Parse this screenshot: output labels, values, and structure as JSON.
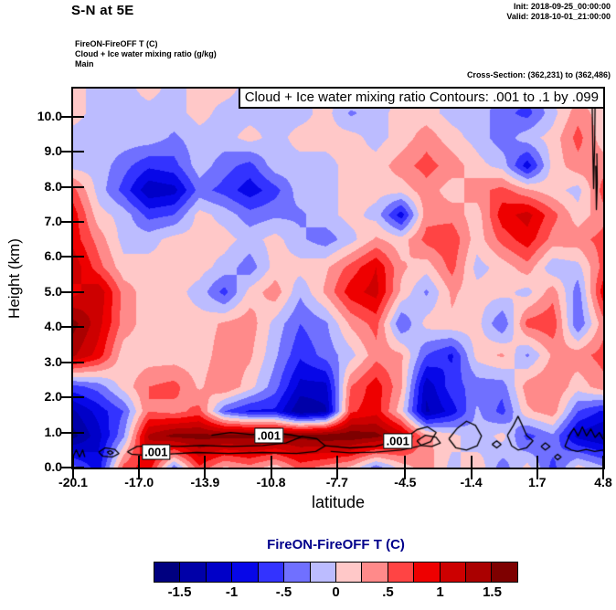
{
  "header": {
    "title": "S-N at 5E",
    "init_label": "Init: 2018-09-25_00:00:00",
    "valid_label": "Valid: 2018-10-01_21:00:00",
    "legend_lines": [
      "FireON-FireOFF T   (C)",
      "Cloud + Ice water mixing ratio   (g/kg)",
      "Main"
    ],
    "cross_section": "Cross-Section: (362,231) to (362,486)"
  },
  "chart_data": {
    "type": "heatmap",
    "title": "Cloud + Ice water mixing ratio Contours: .001 to .1 by .099",
    "xlabel": "latitude",
    "ylabel": "Height (km)",
    "field_name": "FireON-FireOFF T (C)",
    "xlim": [
      -20.1,
      4.8
    ],
    "ylim": [
      0,
      10.8
    ],
    "x_ticks": [
      "-20.1",
      "-17.0",
      "-13.9",
      "-10.8",
      "-7.7",
      "-4.5",
      "-1.4",
      "1.7",
      "4.8"
    ],
    "y_ticks": [
      "0.0",
      "1.0",
      "2.0",
      "3.0",
      "4.0",
      "5.0",
      "6.0",
      "7.0",
      "8.0",
      "9.0",
      "10.0"
    ],
    "grid": {
      "comment": "Approximate FireON-FireOFF temperature difference field (C), rows top-to-bottom",
      "lats": [
        -20.1,
        -18.91,
        -17.73,
        -16.54,
        -15.36,
        -14.17,
        -12.99,
        -11.8,
        -10.61,
        -9.43,
        -8.24,
        -7.06,
        -5.87,
        -4.69,
        -3.5,
        -2.31,
        -1.13,
        0.06,
        1.24,
        2.43,
        3.61,
        4.8
      ],
      "heights": [
        10.8,
        10.1,
        9.4,
        8.6,
        7.9,
        7.2,
        6.5,
        5.7,
        5.0,
        4.1,
        3.2,
        2.3,
        1.6,
        0.9,
        0.0
      ],
      "values": [
        [
          0.1,
          -0.1,
          -0.1,
          0.1,
          -0.1,
          0.1,
          0.1,
          -0.1,
          -0.1,
          -0.1,
          0.1,
          0.1,
          -0.3,
          0.1,
          0.1,
          -0.1,
          -0.3,
          -0.1,
          -0.4,
          0.1,
          0.1,
          0.1
        ],
        [
          0.1,
          -0.1,
          -0.1,
          -0.1,
          -0.1,
          0.1,
          -0.1,
          -0.1,
          -0.1,
          -0.1,
          0.1,
          -0.3,
          -0.1,
          0.1,
          0.1,
          -0.1,
          -0.1,
          -0.4,
          -0.6,
          -0.1,
          0.4,
          0.1
        ],
        [
          -0.1,
          -0.1,
          -0.1,
          -0.1,
          -0.3,
          -0.1,
          -0.1,
          0.1,
          -0.1,
          0.1,
          0.1,
          0.1,
          -0.1,
          0.1,
          0.4,
          0.1,
          -0.1,
          -0.4,
          -0.1,
          0.1,
          0.6,
          0.1
        ],
        [
          -0.1,
          -0.1,
          -0.4,
          -0.7,
          -0.6,
          -0.1,
          -0.4,
          -0.6,
          -0.1,
          -0.1,
          -0.1,
          0.1,
          0.1,
          0.4,
          0.6,
          0.4,
          0.1,
          -0.1,
          -0.9,
          0.1,
          0.4,
          0.4
        ],
        [
          0.6,
          -0.1,
          -0.6,
          -1.2,
          -1.1,
          -0.4,
          -0.6,
          -0.9,
          -0.6,
          -0.1,
          -0.1,
          0.1,
          0.1,
          0.1,
          0.4,
          0.1,
          0.4,
          0.6,
          0.3,
          0.1,
          -0.1,
          0.6
        ],
        [
          0.9,
          0.1,
          -0.1,
          -0.6,
          -0.5,
          0.1,
          -0.1,
          -0.4,
          -0.3,
          -0.3,
          -0.1,
          0.1,
          -0.1,
          -0.9,
          0.4,
          0.4,
          0.1,
          0.9,
          1.1,
          0.6,
          0.1,
          0.4
        ],
        [
          0.9,
          0.4,
          -0.1,
          -0.1,
          0.1,
          0.1,
          0.1,
          -0.1,
          0.1,
          -0.2,
          -0.4,
          -0.1,
          0.3,
          0.1,
          0.6,
          0.7,
          0.1,
          0.6,
          0.9,
          0.4,
          0.4,
          0.6
        ],
        [
          1.2,
          0.6,
          0.1,
          0.1,
          0.1,
          0.1,
          -0.1,
          -0.4,
          0.1,
          0.1,
          0.2,
          0.6,
          1.0,
          0.3,
          0.1,
          0.6,
          -0.1,
          0.1,
          0.4,
          -0.2,
          -0.1,
          0.6
        ],
        [
          0.9,
          1.2,
          0.4,
          0.1,
          0.1,
          -0.1,
          -0.6,
          0.1,
          0.4,
          -0.2,
          0.3,
          0.9,
          1.1,
          0.2,
          -0.3,
          0.3,
          0.1,
          0.1,
          -0.1,
          0.4,
          -0.4,
          0.9
        ],
        [
          1.6,
          1.1,
          0.4,
          0.1,
          0.1,
          0.1,
          0.3,
          0.4,
          -0.1,
          -0.5,
          -0.3,
          0.3,
          0.6,
          -0.5,
          0.1,
          0.2,
          0.1,
          -0.5,
          0.6,
          0.7,
          -0.5,
          0.4
        ],
        [
          1.3,
          0.9,
          0.1,
          0.1,
          0.1,
          0.1,
          0.4,
          0.3,
          -0.2,
          -0.7,
          -0.4,
          -0.1,
          0.4,
          0.3,
          -0.5,
          -0.8,
          0.1,
          0.3,
          -0.3,
          0.3,
          0.4,
          0.6
        ],
        [
          -0.6,
          -0.4,
          0.1,
          0.5,
          0.6,
          0.2,
          0.5,
          0.1,
          -0.4,
          -1.1,
          -1.1,
          0.5,
          0.9,
          0.3,
          -1.2,
          -0.6,
          -0.4,
          -0.4,
          0.4,
          0.5,
          0.1,
          0.4
        ],
        [
          -1.3,
          -0.9,
          -0.5,
          0.5,
          0.4,
          0.6,
          -0.5,
          -0.8,
          -0.8,
          -1.5,
          -1.3,
          0.7,
          0.9,
          0.1,
          -1.3,
          -0.9,
          -0.2,
          -0.6,
          0.2,
          0.4,
          -0.5,
          -0.8
        ],
        [
          -1.6,
          -1.1,
          -0.3,
          1.3,
          1.6,
          1.6,
          1.6,
          1.6,
          1.6,
          1.6,
          1.7,
          1.7,
          1.6,
          1.2,
          0.3,
          0.1,
          -0.2,
          0.1,
          -0.6,
          -0.3,
          -1.1,
          -1.3
        ],
        [
          -0.4,
          -0.9,
          0.6,
          0.9,
          -0.4,
          0.7,
          0.2,
          0.4,
          0.1,
          0.6,
          0.4,
          0.2,
          -0.4,
          0.1,
          0.4,
          -0.1,
          0.2,
          -0.4,
          0.1,
          -0.6,
          0.1,
          -0.2
        ]
      ]
    },
    "contour_label": ".001",
    "contour_labels_positions": [
      {
        "lat": -16.2,
        "km": 0.45
      },
      {
        "lat": -10.9,
        "km": 0.9
      },
      {
        "lat": -4.85,
        "km": 0.75
      }
    ],
    "contours": [
      [
        [
          4.28,
          10.45
        ],
        [
          4.31,
          9.2
        ],
        [
          4.35,
          7.95
        ],
        [
          4.4,
          9.3
        ],
        [
          4.42,
          10.45
        ]
      ],
      [
        [
          4.45,
          8.6
        ],
        [
          4.48,
          7.35
        ],
        [
          4.52,
          8.1
        ],
        [
          4.5,
          8.95
        ]
      ],
      [
        [
          -20.1,
          0.32
        ],
        [
          -19.95,
          0.5
        ],
        [
          -19.8,
          0.3
        ],
        [
          -19.65,
          0.5
        ],
        [
          -19.55,
          0.3
        ]
      ],
      [
        [
          -18.9,
          0.44
        ],
        [
          -18.6,
          0.56
        ],
        [
          -18.15,
          0.52
        ],
        [
          -17.95,
          0.4
        ],
        [
          -18.25,
          0.3
        ],
        [
          -18.7,
          0.32
        ],
        [
          -18.9,
          0.44
        ]
      ],
      [
        [
          -18.5,
          0.44
        ],
        [
          -18.35,
          0.48
        ],
        [
          -18.22,
          0.42
        ],
        [
          -18.36,
          0.37
        ],
        [
          -18.5,
          0.44
        ]
      ],
      [
        [
          -17.55,
          0.45
        ],
        [
          -17.1,
          0.6
        ],
        [
          -16.3,
          0.63
        ],
        [
          -15.2,
          0.6
        ],
        [
          -14.0,
          0.63
        ],
        [
          -12.7,
          0.6
        ],
        [
          -11.2,
          0.63
        ],
        [
          -10.1,
          0.7
        ],
        [
          -9.35,
          0.88
        ],
        [
          -8.65,
          0.82
        ],
        [
          -8.25,
          0.62
        ],
        [
          -8.7,
          0.46
        ],
        [
          -9.6,
          0.4
        ],
        [
          -11.2,
          0.43
        ],
        [
          -12.8,
          0.4
        ],
        [
          -14.3,
          0.43
        ],
        [
          -15.7,
          0.38
        ],
        [
          -16.7,
          0.35
        ],
        [
          -17.35,
          0.38
        ],
        [
          -17.55,
          0.45
        ]
      ],
      [
        [
          -13.6,
          0.92
        ],
        [
          -12.7,
          1.0
        ],
        [
          -11.7,
          0.94
        ],
        [
          -10.75,
          1.0
        ],
        [
          -9.85,
          0.93
        ],
        [
          -9.3,
          0.87
        ]
      ],
      [
        [
          -8.25,
          0.62
        ],
        [
          -7.1,
          0.56
        ],
        [
          -5.9,
          0.6
        ],
        [
          -5.0,
          0.74
        ],
        [
          -4.35,
          0.9
        ],
        [
          -3.95,
          1.08
        ],
        [
          -3.45,
          1.16
        ],
        [
          -3.05,
          1.0
        ],
        [
          -3.3,
          0.74
        ],
        [
          -3.9,
          0.6
        ],
        [
          -4.7,
          0.5
        ],
        [
          -5.9,
          0.44
        ],
        [
          -7.1,
          0.42
        ],
        [
          -8.0,
          0.46
        ]
      ],
      [
        [
          -3.95,
          0.76
        ],
        [
          -3.55,
          0.92
        ],
        [
          -3.05,
          0.86
        ],
        [
          -2.85,
          0.7
        ],
        [
          -3.25,
          0.6
        ],
        [
          -3.75,
          0.63
        ],
        [
          -3.95,
          0.76
        ]
      ],
      [
        [
          -2.45,
          0.82
        ],
        [
          -2.05,
          1.12
        ],
        [
          -1.62,
          1.32
        ],
        [
          -1.2,
          1.2
        ],
        [
          -0.92,
          0.9
        ],
        [
          -1.12,
          0.62
        ],
        [
          -1.62,
          0.5
        ],
        [
          -2.12,
          0.56
        ],
        [
          -2.45,
          0.82
        ]
      ],
      [
        [
          -0.42,
          0.66
        ],
        [
          -0.2,
          0.76
        ],
        [
          0.0,
          0.66
        ],
        [
          -0.2,
          0.56
        ],
        [
          -0.42,
          0.66
        ]
      ],
      [
        [
          0.3,
          0.92
        ],
        [
          0.58,
          1.2
        ],
        [
          0.8,
          1.46
        ],
        [
          1.0,
          1.2
        ],
        [
          1.2,
          0.92
        ],
        [
          1.5,
          0.76
        ],
        [
          1.2,
          0.56
        ],
        [
          0.8,
          0.5
        ],
        [
          0.5,
          0.62
        ],
        [
          0.3,
          0.92
        ]
      ],
      [
        [
          1.88,
          0.6
        ],
        [
          2.08,
          0.7
        ],
        [
          2.3,
          0.6
        ],
        [
          2.08,
          0.5
        ],
        [
          1.88,
          0.6
        ]
      ],
      [
        [
          2.5,
          0.3
        ],
        [
          2.66,
          0.38
        ],
        [
          2.82,
          0.3
        ],
        [
          2.66,
          0.22
        ],
        [
          2.5,
          0.3
        ]
      ],
      [
        [
          3.0,
          0.6
        ],
        [
          3.2,
          0.9
        ],
        [
          3.42,
          1.12
        ],
        [
          3.62,
          0.9
        ],
        [
          3.82,
          1.16
        ],
        [
          4.02,
          0.9
        ],
        [
          4.22,
          1.1
        ],
        [
          4.42,
          0.86
        ],
        [
          4.62,
          1.0
        ],
        [
          4.8,
          0.8
        ]
      ],
      [
        [
          4.8,
          0.5
        ],
        [
          4.4,
          0.46
        ],
        [
          4.0,
          0.52
        ],
        [
          3.6,
          0.46
        ],
        [
          3.3,
          0.5
        ],
        [
          3.0,
          0.6
        ]
      ]
    ],
    "colorbar": {
      "title": "FireON-FireOFF T  (C)",
      "title_color": "#00008B",
      "tick_labels": [
        "-1.5",
        "-1",
        "-.5",
        "0",
        ".5",
        "1",
        "1.5"
      ],
      "levels": [
        -1.75,
        -1.5,
        -1.25,
        -1.0,
        -0.75,
        -0.5,
        -0.25,
        0,
        0.25,
        0.5,
        0.75,
        1.0,
        1.25,
        1.5,
        1.75
      ],
      "colors": [
        "#000080",
        "#0000A8",
        "#0000C8",
        "#0707E8",
        "#3333FF",
        "#7070FF",
        "#BCBCFF",
        "#FFC8C8",
        "#FF8A8A",
        "#FF4444",
        "#EE0000",
        "#CD0000",
        "#AA0000",
        "#7E0000"
      ]
    }
  }
}
